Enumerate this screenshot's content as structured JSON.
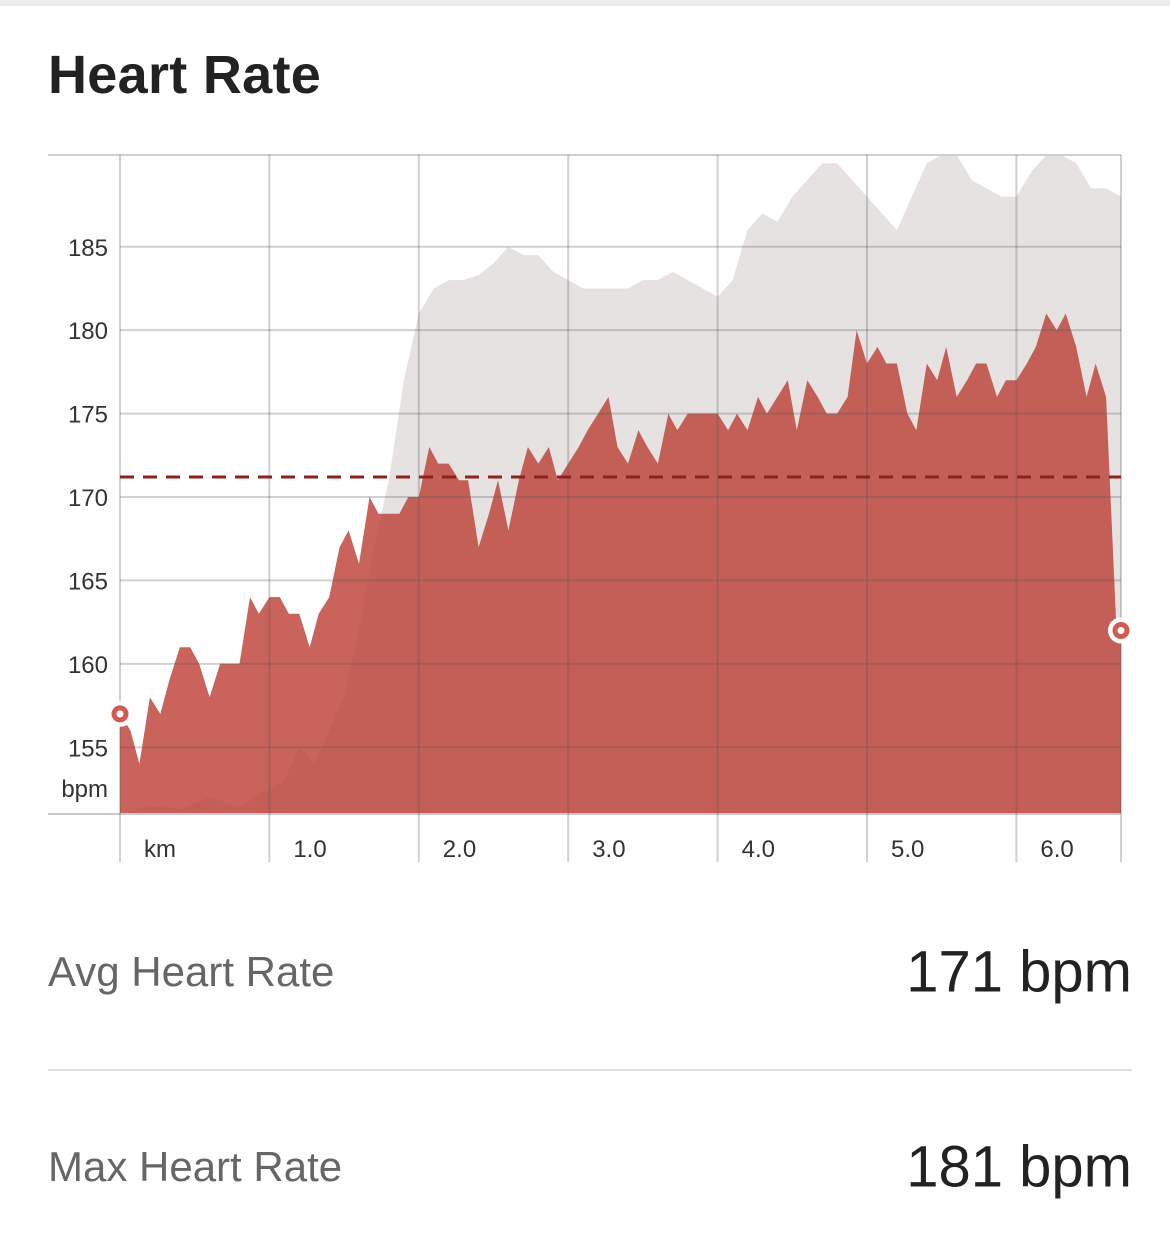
{
  "header": {
    "title": "Heart Rate"
  },
  "chart_data": {
    "type": "area",
    "title": "",
    "xlabel": "km",
    "ylabel": "bpm",
    "x_ticks": [
      1.0,
      2.0,
      3.0,
      4.0,
      5.0,
      6.0
    ],
    "x_tick_labels": [
      "km",
      "1.0",
      "2.0",
      "3.0",
      "4.0",
      "5.0",
      "6.0"
    ],
    "y_ticks": [
      155,
      160,
      165,
      170,
      175,
      180,
      185
    ],
    "y_tick_labels": [
      "155",
      "160",
      "165",
      "170",
      "175",
      "180",
      "185"
    ],
    "xlim": [
      0,
      6.7
    ],
    "ylim": [
      151,
      190.5
    ],
    "grid": true,
    "average_line": 171.2,
    "series": [
      {
        "name": "",
        "role": "heart-rate",
        "color": "#c5574f",
        "x": [
          0.0,
          0.07,
          0.13,
          0.2,
          0.27,
          0.33,
          0.4,
          0.47,
          0.53,
          0.6,
          0.67,
          0.73,
          0.8,
          0.87,
          0.93,
          1.0,
          1.07,
          1.13,
          1.2,
          1.27,
          1.33,
          1.4,
          1.47,
          1.53,
          1.6,
          1.67,
          1.73,
          1.8,
          1.87,
          1.93,
          2.0,
          2.07,
          2.13,
          2.2,
          2.27,
          2.33,
          2.4,
          2.47,
          2.53,
          2.6,
          2.67,
          2.73,
          2.8,
          2.87,
          2.93,
          3.0,
          3.07,
          3.13,
          3.2,
          3.27,
          3.33,
          3.4,
          3.47,
          3.53,
          3.6,
          3.67,
          3.73,
          3.8,
          3.87,
          3.93,
          4.0,
          4.07,
          4.13,
          4.2,
          4.27,
          4.33,
          4.4,
          4.47,
          4.53,
          4.6,
          4.67,
          4.73,
          4.8,
          4.87,
          4.93,
          5.0,
          5.07,
          5.13,
          5.2,
          5.27,
          5.33,
          5.4,
          5.47,
          5.53,
          5.6,
          5.67,
          5.73,
          5.8,
          5.87,
          5.93,
          6.0,
          6.07,
          6.13,
          6.2,
          6.27,
          6.33,
          6.4,
          6.47,
          6.53,
          6.6,
          6.67,
          6.7
        ],
        "y": [
          157,
          156,
          154,
          158,
          157,
          159,
          161,
          161,
          160,
          158,
          160,
          160,
          160,
          164,
          163,
          164,
          164,
          163,
          163,
          161,
          163,
          164,
          167,
          168,
          166,
          170,
          169,
          169,
          169,
          170,
          170,
          173,
          172,
          172,
          171,
          171,
          167,
          169,
          171,
          168,
          171,
          173,
          172,
          173,
          171,
          172,
          173,
          174,
          175,
          176,
          173,
          172,
          174,
          173,
          172,
          175,
          174,
          175,
          175,
          175,
          175,
          174,
          175,
          174,
          176,
          175,
          176,
          177,
          174,
          177,
          176,
          175,
          175,
          176,
          180,
          178,
          179,
          178,
          178,
          175,
          174,
          178,
          177,
          179,
          176,
          177,
          178,
          178,
          176,
          177,
          177,
          178,
          179,
          181,
          180,
          181,
          179,
          176,
          178,
          176,
          162,
          162
        ]
      },
      {
        "name": "",
        "role": "elevation-background",
        "color": "#ededed",
        "x": [
          0.0,
          0.2,
          0.4,
          0.6,
          0.8,
          1.0,
          1.1,
          1.2,
          1.3,
          1.4,
          1.5,
          1.6,
          1.7,
          1.8,
          1.9,
          2.0,
          2.1,
          2.2,
          2.3,
          2.4,
          2.5,
          2.6,
          2.7,
          2.8,
          2.9,
          3.0,
          3.1,
          3.2,
          3.3,
          3.4,
          3.5,
          3.6,
          3.7,
          3.8,
          3.9,
          4.0,
          4.1,
          4.2,
          4.3,
          4.4,
          4.5,
          4.6,
          4.7,
          4.8,
          4.9,
          5.0,
          5.1,
          5.2,
          5.3,
          5.4,
          5.5,
          5.6,
          5.7,
          5.8,
          5.9,
          6.0,
          6.1,
          6.2,
          6.3,
          6.4,
          6.5,
          6.6,
          6.7
        ],
        "y": [
          151,
          151.5,
          151.3,
          152,
          151.4,
          152.5,
          153,
          155,
          154,
          156,
          158,
          162,
          167,
          171,
          177,
          181,
          182.5,
          183,
          183,
          183.3,
          184,
          185,
          184.5,
          184.5,
          183.5,
          183,
          182.5,
          182.5,
          182.5,
          182.5,
          183,
          183,
          183.5,
          183,
          182.5,
          182,
          183,
          186,
          187,
          186.5,
          188,
          189,
          190,
          190,
          189,
          188,
          187,
          186,
          188,
          190,
          190.5,
          190.5,
          189,
          188.5,
          188,
          188,
          189.5,
          190.5,
          190.5,
          190,
          188.5,
          188.5,
          188
        ]
      }
    ],
    "start_marker": 157,
    "end_marker": 162
  },
  "stats": [
    {
      "label": "Avg Heart Rate",
      "value": "171 bpm"
    },
    {
      "label": "Max Heart Rate",
      "value": "181 bpm"
    }
  ]
}
